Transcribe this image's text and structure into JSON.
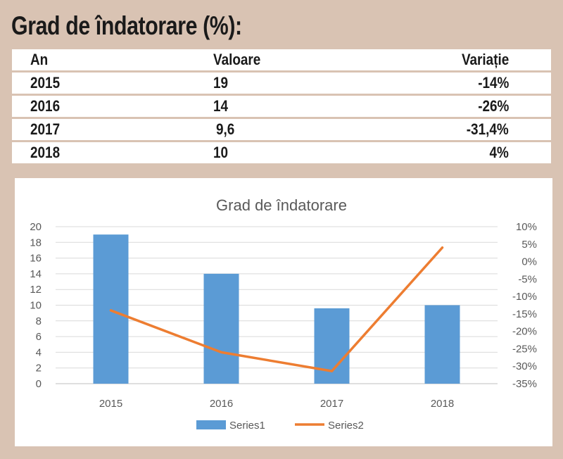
{
  "header": {
    "title": "Grad de îndatorare (%):"
  },
  "table": {
    "columns": [
      "An",
      "Valoare",
      "Variație"
    ],
    "rows": [
      [
        "2015",
        "19",
        "-14%"
      ],
      [
        "2016",
        "14",
        "-26%"
      ],
      [
        "2017",
        "9,6",
        "-31,4%"
      ],
      [
        "2018",
        "10",
        "4%"
      ]
    ]
  },
  "chart_data": {
    "type": "bar",
    "title": "Grad de îndatorare",
    "categories": [
      "2015",
      "2016",
      "2017",
      "2018"
    ],
    "series": [
      {
        "name": "Series1",
        "type": "bar",
        "axis": "left",
        "values": [
          19,
          14,
          9.6,
          10
        ],
        "color": "#5b9bd5"
      },
      {
        "name": "Series2",
        "type": "line",
        "axis": "right",
        "values": [
          -14,
          -26,
          -31.4,
          4
        ],
        "color": "#ed7d31"
      }
    ],
    "ylim": [
      0,
      20
    ],
    "y_ticks": [
      "0",
      "2",
      "4",
      "6",
      "8",
      "10",
      "12",
      "14",
      "16",
      "18",
      "20"
    ],
    "y2lim": [
      -35,
      10
    ],
    "y2_ticks": [
      "-35%",
      "-30%",
      "-25%",
      "-20%",
      "-15%",
      "-10%",
      "-5%",
      "0%",
      "5%",
      "10%"
    ],
    "grid": true,
    "legend_position": "bottom"
  }
}
